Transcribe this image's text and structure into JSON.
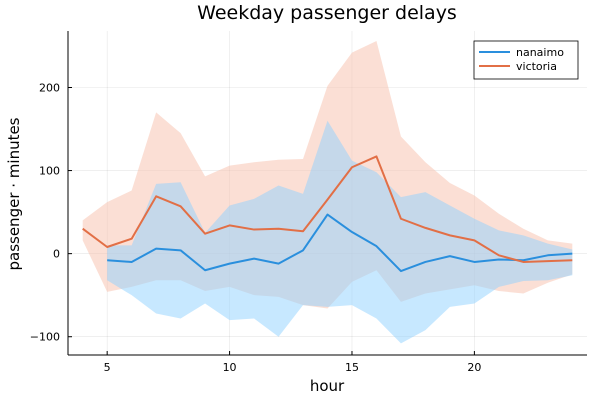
{
  "chart_data": {
    "type": "line",
    "title": "Weekday passenger delays",
    "xlabel": "hour",
    "ylabel": "passenger · minutes",
    "xlim": [
      3.4,
      24.6
    ],
    "ylim": [
      -122,
      268
    ],
    "xticks": [
      5,
      10,
      15,
      20
    ],
    "yticks": [
      -100,
      0,
      100,
      200
    ],
    "xtick_labels": [
      "5",
      "10",
      "15",
      "20"
    ],
    "ytick_labels": [
      "−100",
      "0",
      "100",
      "200"
    ],
    "grid": true,
    "legend_position": "top-right",
    "series": [
      {
        "name": "nanaimo",
        "color": "#2a8fdd",
        "band_color": "#8fd1ff",
        "x": [
          5,
          6,
          7,
          8,
          9,
          10,
          11,
          12,
          13,
          14,
          15,
          16,
          17,
          18,
          19,
          20,
          21,
          22,
          23,
          24
        ],
        "values": [
          -8,
          -10,
          6,
          4,
          -20,
          -12,
          -6,
          -12,
          4,
          47,
          26,
          9,
          -21,
          -10,
          -3,
          -10,
          -7,
          -8,
          -2,
          0
        ],
        "lower": [
          -32,
          -50,
          -72,
          -78,
          -60,
          -80,
          -78,
          -100,
          -62,
          -64,
          -62,
          -78,
          -108,
          -92,
          -64,
          -60,
          -40,
          -33,
          -32,
          -26
        ],
        "upper": [
          10,
          10,
          84,
          86,
          25,
          58,
          66,
          82,
          72,
          160,
          112,
          98,
          68,
          74,
          58,
          42,
          28,
          22,
          12,
          5
        ]
      },
      {
        "name": "victoria",
        "color": "#e26f46",
        "band_color": "#f7c0ac",
        "x": [
          4,
          5,
          6,
          7,
          8,
          9,
          10,
          11,
          12,
          13,
          14,
          15,
          16,
          17,
          18,
          19,
          20,
          21,
          22,
          23,
          24
        ],
        "values": [
          30,
          8,
          18,
          69,
          57,
          24,
          34,
          29,
          30,
          27,
          65,
          104,
          117,
          42,
          31,
          22,
          16,
          -2,
          -10,
          -9,
          -8
        ],
        "lower": [
          16,
          -46,
          -40,
          -32,
          -32,
          -45,
          -40,
          -50,
          -52,
          -62,
          -66,
          -34,
          -20,
          -58,
          -48,
          -43,
          -38,
          -45,
          -48,
          -35,
          -25
        ],
        "upper": [
          40,
          62,
          76,
          170,
          145,
          93,
          106,
          110,
          113,
          114,
          202,
          242,
          256,
          141,
          110,
          85,
          70,
          48,
          30,
          16,
          12
        ]
      }
    ]
  }
}
